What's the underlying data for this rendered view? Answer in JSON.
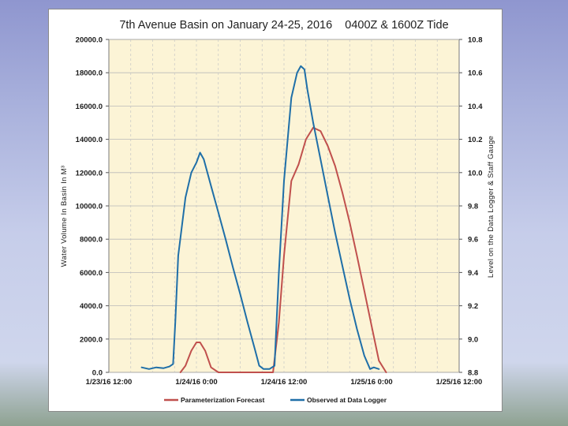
{
  "chart_data": {
    "type": "line",
    "title": "7th Avenue Basin on January 24-25, 2016    0400Z & 1600Z Tide",
    "ylabel_left": "Water Volume In Basin In M³",
    "ylabel_right": "Level on the Data Logger & Staff Gauge",
    "ylim_left": [
      0,
      20000
    ],
    "ylim_right": [
      8.8,
      10.8
    ],
    "xlim": [
      "1/23/16 12:00",
      "1/25/16 12:00"
    ],
    "left_ticks": [
      "0.0",
      "2000.0",
      "4000.0",
      "6000.0",
      "8000.0",
      "10000.0",
      "12000.0",
      "14000.0",
      "16000.0",
      "18000.0",
      "20000.0"
    ],
    "right_ticks": [
      "8.8",
      "9.0",
      "9.2",
      "9.4",
      "9.6",
      "9.8",
      "10.0",
      "10.2",
      "10.4",
      "10.6",
      "10.8"
    ],
    "x_ticks": [
      "1/23/16 12:00",
      "1/24/16 0:00",
      "1/24/16 12:00",
      "1/25/16 0:00",
      "1/25/16 12:00"
    ],
    "grid": true,
    "legend_position": "bottom",
    "series": [
      {
        "name": "Parameterization Forecast",
        "color": "#c0504d",
        "axis": "left",
        "x_hours": [
          9.8,
          10.5,
          11.3,
          12.0,
          12.5,
          13.2,
          14.0,
          15.0,
          22.5,
          23.3,
          24.0,
          25.0,
          26.0,
          27.0,
          28.0,
          29.0,
          30.0,
          31.0,
          32.0,
          33.0,
          34.0,
          35.0,
          36.0,
          37.0,
          38.0
        ],
        "values": [
          0,
          400,
          1300,
          1800,
          1800,
          1300,
          300,
          0,
          0,
          3000,
          7000,
          11500,
          12500,
          14000,
          14700,
          14500,
          13600,
          12400,
          10800,
          9000,
          7000,
          4900,
          2800,
          700,
          0
        ]
      },
      {
        "name": "Observed at Data Logger",
        "color": "#1f6fa8",
        "axis": "left",
        "x_hours": [
          4.5,
          5.5,
          6.5,
          7.5,
          8.3,
          8.8,
          9.1,
          9.5,
          10.5,
          11.3,
          12.0,
          12.5,
          13.0,
          14.0,
          15.0,
          16.0,
          17.0,
          18.0,
          19.0,
          20.0,
          20.6,
          21.2,
          22.0,
          22.7,
          23.3,
          24.0,
          25.0,
          25.8,
          26.3,
          26.8,
          27.2,
          28.0,
          29.0,
          30.0,
          31.0,
          32.0,
          33.0,
          34.0,
          35.0,
          35.8,
          36.3,
          37.0
        ],
        "values": [
          300,
          200,
          300,
          250,
          350,
          500,
          3000,
          7000,
          10500,
          12000,
          12600,
          13200,
          12800,
          11200,
          9600,
          8000,
          6300,
          4700,
          3000,
          1400,
          400,
          200,
          200,
          400,
          6000,
          11500,
          16500,
          18000,
          18400,
          18200,
          17000,
          15000,
          12800,
          10600,
          8400,
          6400,
          4400,
          2600,
          1000,
          200,
          300,
          200
        ]
      }
    ]
  }
}
